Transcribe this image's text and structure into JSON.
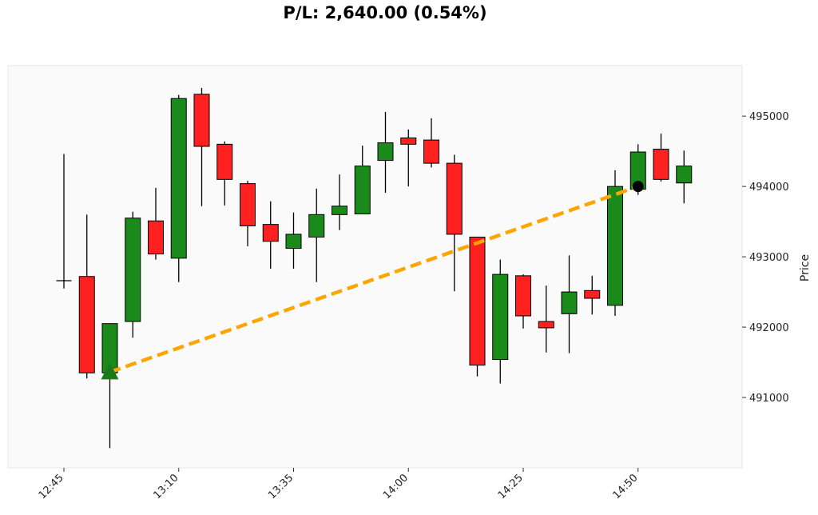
{
  "chart_data": {
    "type": "candlestick",
    "title": "P/L: 2,640.00 (0.54%)",
    "xlabel": "",
    "ylabel": "Price",
    "y_axis_side": "right",
    "ylim": [
      490000,
      495650
    ],
    "y_ticks": [
      491000,
      492000,
      493000,
      494000,
      495000
    ],
    "x_ticks": [
      "12:45",
      "13:10",
      "13:35",
      "14:00",
      "14:25",
      "14:50"
    ],
    "grid": false,
    "colors": {
      "up": "#1a8a1a",
      "down": "#ff2020",
      "trade_line": "#ffa500",
      "entry_marker": "#1a7a1a",
      "exit_marker": "#000000",
      "plot_bg": "#fafafa"
    },
    "candles": [
      {
        "time": "12:45",
        "open": 492660,
        "high": 494460,
        "low": 492550,
        "close": 492660
      },
      {
        "time": "12:50",
        "open": 492720,
        "high": 493600,
        "low": 491270,
        "close": 491350
      },
      {
        "time": "12:55",
        "open": 491350,
        "high": 492050,
        "low": 490280,
        "close": 492050
      },
      {
        "time": "13:00",
        "open": 492080,
        "high": 493640,
        "low": 491850,
        "close": 493550
      },
      {
        "time": "13:05",
        "open": 493510,
        "high": 493980,
        "low": 492960,
        "close": 493040
      },
      {
        "time": "13:10",
        "open": 492980,
        "high": 495300,
        "low": 492640,
        "close": 495250
      },
      {
        "time": "13:15",
        "open": 495310,
        "high": 495400,
        "low": 493720,
        "close": 494570
      },
      {
        "time": "13:20",
        "open": 494600,
        "high": 494640,
        "low": 493730,
        "close": 494100
      },
      {
        "time": "13:25",
        "open": 494040,
        "high": 494080,
        "low": 493150,
        "close": 493440
      },
      {
        "time": "13:30",
        "open": 493460,
        "high": 493790,
        "low": 492830,
        "close": 493220
      },
      {
        "time": "13:35",
        "open": 493120,
        "high": 493630,
        "low": 492830,
        "close": 493320
      },
      {
        "time": "13:40",
        "open": 493280,
        "high": 493970,
        "low": 492640,
        "close": 493600
      },
      {
        "time": "13:45",
        "open": 493600,
        "high": 494170,
        "low": 493380,
        "close": 493720
      },
      {
        "time": "13:50",
        "open": 493610,
        "high": 494580,
        "low": 493610,
        "close": 494290
      },
      {
        "time": "13:55",
        "open": 494370,
        "high": 495060,
        "low": 493910,
        "close": 494620
      },
      {
        "time": "14:00",
        "open": 494690,
        "high": 494810,
        "low": 494000,
        "close": 494600
      },
      {
        "time": "14:05",
        "open": 494660,
        "high": 494970,
        "low": 494270,
        "close": 494330
      },
      {
        "time": "14:10",
        "open": 494330,
        "high": 494450,
        "low": 492510,
        "close": 493320
      },
      {
        "time": "14:15",
        "open": 493280,
        "high": 493280,
        "low": 491300,
        "close": 491460
      },
      {
        "time": "14:20",
        "open": 491540,
        "high": 492960,
        "low": 491200,
        "close": 492750
      },
      {
        "time": "14:25",
        "open": 492730,
        "high": 492750,
        "low": 491980,
        "close": 492160
      },
      {
        "time": "14:30",
        "open": 492080,
        "high": 492590,
        "low": 491640,
        "close": 491990
      },
      {
        "time": "14:35",
        "open": 492190,
        "high": 493020,
        "low": 491630,
        "close": 492500
      },
      {
        "time": "14:40",
        "open": 492520,
        "high": 492730,
        "low": 492180,
        "close": 492410
      },
      {
        "time": "14:45",
        "open": 492310,
        "high": 494230,
        "low": 492160,
        "close": 494000
      },
      {
        "time": "14:50",
        "open": 493960,
        "high": 494600,
        "low": 493880,
        "close": 494490
      },
      {
        "time": "14:55",
        "open": 494530,
        "high": 494750,
        "low": 494070,
        "close": 494100
      },
      {
        "time": "15:00",
        "open": 494050,
        "high": 494510,
        "low": 493760,
        "close": 494290
      }
    ],
    "trade": {
      "entry": {
        "time": "12:55",
        "price": 491360
      },
      "exit": {
        "time": "14:50",
        "price": 494000
      }
    }
  }
}
